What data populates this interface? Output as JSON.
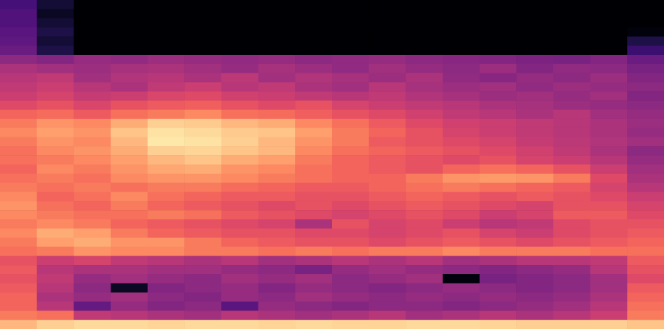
{
  "chart_data": {
    "type": "heatmap",
    "tick_labels": false,
    "zlim": [
      -80,
      0
    ],
    "z": [
      [
        -62,
        -72,
        -80,
        -80,
        -80,
        -80,
        -80,
        -80,
        -80,
        -80,
        -80,
        -80,
        -80,
        -80,
        -80,
        -80,
        -80,
        -80
      ],
      [
        -60,
        -75,
        -80,
        -80,
        -80,
        -80,
        -80,
        -80,
        -80,
        -80,
        -80,
        -80,
        -80,
        -80,
        -80,
        -80,
        -80,
        -80
      ],
      [
        -60,
        -72,
        -80,
        -80,
        -80,
        -80,
        -80,
        -80,
        -80,
        -80,
        -80,
        -80,
        -80,
        -80,
        -80,
        -80,
        -80,
        -80
      ],
      [
        -58,
        -70,
        -80,
        -80,
        -80,
        -80,
        -80,
        -80,
        -80,
        -80,
        -80,
        -80,
        -80,
        -80,
        -80,
        -80,
        -80,
        -78
      ],
      [
        -57,
        -72,
        -80,
        -80,
        -80,
        -80,
        -80,
        -80,
        -80,
        -80,
        -80,
        -80,
        -80,
        -80,
        -80,
        -80,
        -80,
        -70
      ],
      [
        -55,
        -70,
        -80,
        -80,
        -80,
        -80,
        -80,
        -80,
        -80,
        -80,
        -80,
        -80,
        -80,
        -80,
        -80,
        -80,
        -80,
        -64
      ],
      [
        -48,
        -50,
        -46,
        -47,
        -45,
        -46,
        -47,
        -46,
        -48,
        -47,
        -46,
        -48,
        -49,
        -50,
        -51,
        -52,
        -50,
        -55
      ],
      [
        -42,
        -44,
        -45,
        -43,
        -42,
        -44,
        -46,
        -43,
        -45,
        -47,
        -44,
        -46,
        -48,
        -45,
        -50,
        -47,
        -48,
        -52
      ],
      [
        -40,
        -38,
        -44,
        -41,
        -40,
        -42,
        -39,
        -44,
        -41,
        -43,
        -45,
        -42,
        -47,
        -49,
        -46,
        -48,
        -45,
        -50
      ],
      [
        -38,
        -36,
        -40,
        -42,
        -38,
        -36,
        -40,
        -38,
        -42,
        -44,
        -40,
        -43,
        -45,
        -44,
        -47,
        -45,
        -46,
        -48
      ],
      [
        -36,
        -34,
        -37,
        -36,
        -33,
        -32,
        -35,
        -36,
        -38,
        -40,
        -38,
        -41,
        -43,
        -45,
        -44,
        -46,
        -44,
        -50
      ],
      [
        -32,
        -30,
        -33,
        -30,
        -28,
        -27,
        -30,
        -32,
        -30,
        -34,
        -36,
        -38,
        -40,
        -42,
        -43,
        -45,
        -46,
        -48
      ],
      [
        -26,
        -25,
        -28,
        -24,
        -22,
        -20,
        -24,
        -25,
        -27,
        -30,
        -32,
        -35,
        -38,
        -40,
        -42,
        -40,
        -44,
        -46
      ],
      [
        -22,
        -18,
        -20,
        -14,
        -8,
        -9,
        -12,
        -14,
        -20,
        -24,
        -28,
        -32,
        -35,
        -36,
        -38,
        -40,
        -42,
        -45
      ],
      [
        -20,
        -16,
        -18,
        -10,
        -5,
        -6,
        -9,
        -10,
        -16,
        -22,
        -26,
        -30,
        -34,
        -36,
        -38,
        -40,
        -42,
        -46
      ],
      [
        -22,
        -18,
        -20,
        -12,
        -4,
        -5,
        -8,
        -12,
        -18,
        -22,
        -28,
        -30,
        -32,
        -34,
        -37,
        -39,
        -41,
        -44
      ],
      [
        -24,
        -20,
        -18,
        -14,
        -8,
        -7,
        -10,
        -12,
        -20,
        -24,
        -26,
        -28,
        -30,
        -32,
        -35,
        -38,
        -42,
        -48
      ],
      [
        -24,
        -22,
        -20,
        -16,
        -12,
        -10,
        -14,
        -16,
        -22,
        -26,
        -28,
        -30,
        -32,
        -30,
        -34,
        -36,
        -40,
        -46
      ],
      [
        -26,
        -20,
        -22,
        -18,
        -15,
        -14,
        -18,
        -20,
        -24,
        -26,
        -28,
        -30,
        -26,
        -24,
        -26,
        -30,
        -36,
        -44
      ],
      [
        -24,
        -22,
        -24,
        -20,
        -18,
        -18,
        -20,
        -22,
        -24,
        -26,
        -26,
        -22,
        -18,
        -17,
        -18,
        -22,
        -32,
        -42
      ],
      [
        -22,
        -24,
        -22,
        -24,
        -22,
        -22,
        -25,
        -26,
        -28,
        -28,
        -26,
        -24,
        -22,
        -24,
        -26,
        -28,
        -34,
        -40
      ],
      [
        -20,
        -26,
        -24,
        -20,
        -24,
        -26,
        -28,
        -28,
        -30,
        -30,
        -28,
        -26,
        -28,
        -30,
        -28,
        -30,
        -32,
        -36
      ],
      [
        -18,
        -24,
        -26,
        -22,
        -26,
        -28,
        -30,
        -32,
        -30,
        -32,
        -30,
        -28,
        -30,
        -32,
        -34,
        -30,
        -30,
        -34
      ],
      [
        -20,
        -22,
        -24,
        -24,
        -22,
        -24,
        -28,
        -30,
        -32,
        -34,
        -32,
        -30,
        -32,
        -36,
        -34,
        -28,
        -28,
        -32
      ],
      [
        -22,
        -20,
        -22,
        -26,
        -28,
        -30,
        -32,
        -34,
        -42,
        -30,
        -34,
        -32,
        -36,
        -40,
        -38,
        -32,
        -30,
        -30
      ],
      [
        -20,
        -14,
        -16,
        -22,
        -26,
        -28,
        -30,
        -30,
        -32,
        -32,
        -34,
        -32,
        -30,
        -34,
        -36,
        -32,
        -30,
        -28
      ],
      [
        -22,
        -16,
        -14,
        -18,
        -18,
        -22,
        -26,
        -28,
        -30,
        -30,
        -32,
        -30,
        -28,
        -30,
        -32,
        -30,
        -28,
        -26
      ],
      [
        -24,
        -22,
        -18,
        -20,
        -20,
        -22,
        -22,
        -24,
        -22,
        -24,
        -22,
        -22,
        -20,
        -22,
        -22,
        -22,
        -24,
        -24
      ],
      [
        -30,
        -36,
        -34,
        -38,
        -40,
        -42,
        -40,
        -44,
        -42,
        -40,
        -42,
        -40,
        -44,
        -42,
        -40,
        -40,
        -38,
        -28
      ],
      [
        -28,
        -40,
        -42,
        -42,
        -44,
        -44,
        -46,
        -48,
        -52,
        -46,
        -44,
        -46,
        -48,
        -50,
        -48,
        -46,
        -40,
        -30
      ],
      [
        -30,
        -38,
        -46,
        -44,
        -46,
        -48,
        -44,
        -46,
        -44,
        -48,
        -46,
        -44,
        -78,
        -52,
        -50,
        -48,
        -44,
        -32
      ],
      [
        -28,
        -40,
        -48,
        -75,
        -50,
        -48,
        -46,
        -50,
        -46,
        -48,
        -50,
        -48,
        -46,
        -48,
        -50,
        -48,
        -44,
        -28
      ],
      [
        -26,
        -42,
        -46,
        -44,
        -48,
        -50,
        -46,
        -48,
        -44,
        -46,
        -48,
        -46,
        -48,
        -46,
        -48,
        -46,
        -42,
        -26
      ],
      [
        -26,
        -40,
        -56,
        -46,
        -50,
        -48,
        -58,
        -46,
        -48,
        -50,
        -48,
        -48,
        -50,
        -48,
        -46,
        -44,
        -40,
        -24
      ],
      [
        -22,
        -24,
        -38,
        -40,
        -42,
        -44,
        -40,
        -42,
        -44,
        -42,
        -40,
        -44,
        -42,
        -40,
        -42,
        -40,
        -36,
        -22
      ],
      [
        -12,
        -8,
        -6,
        -6,
        -7,
        -6,
        -6,
        -7,
        -6,
        -7,
        -7,
        -6,
        -6,
        -7,
        -8,
        -8,
        -8,
        -10
      ]
    ]
  }
}
